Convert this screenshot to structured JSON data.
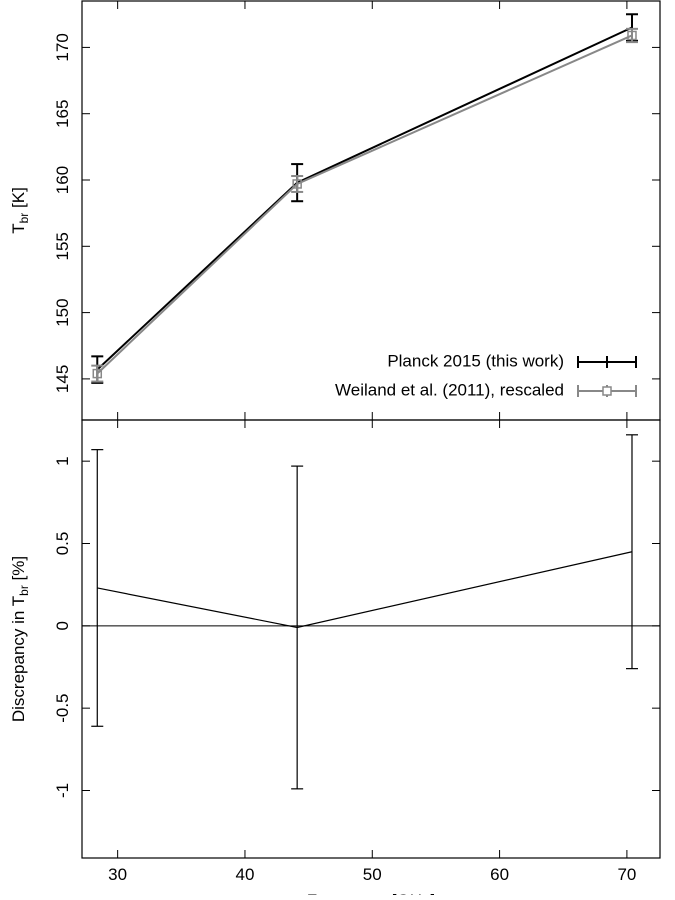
{
  "chart_data": [
    {
      "type": "line",
      "ylabel": [
        "T",
        "br",
        " [K]"
      ],
      "x": [
        28.4,
        44.1,
        70.4
      ],
      "series": [
        {
          "name": "Planck 2015 (this work)",
          "color": "#000000",
          "marker": "none",
          "values": [
            145.7,
            159.8,
            171.5
          ],
          "errors": [
            1.0,
            1.4,
            1.0
          ]
        },
        {
          "name": "Weiland et al. (2011), rescaled",
          "color": "#888888",
          "marker": "square",
          "values": [
            145.4,
            159.7,
            170.9
          ],
          "errors": [
            0.6,
            0.6,
            0.5
          ]
        }
      ],
      "xlim": [
        27.2,
        72.6
      ],
      "xticks": [
        30,
        40,
        50,
        60,
        70
      ],
      "ylim": [
        141.9,
        173.5
      ],
      "yticks": [
        145,
        150,
        155,
        160,
        165,
        170
      ],
      "legend": "lower-right"
    },
    {
      "type": "line",
      "xlabel": "Frequency [GHz]",
      "ylabel": [
        "Discrepancy in T",
        "br",
        " [%]"
      ],
      "x": [
        28.4,
        44.1,
        70.4
      ],
      "values": [
        0.23,
        -0.01,
        0.45
      ],
      "errors": [
        0.84,
        0.98,
        0.71
      ],
      "color": "#000000",
      "xlim": [
        27.2,
        72.6
      ],
      "xticks": [
        30,
        40,
        50,
        60,
        70
      ],
      "ylim": [
        -1.41,
        1.25
      ],
      "yticks": [
        -1,
        -0.5,
        0,
        0.5,
        1
      ],
      "zero_line": true
    }
  ]
}
